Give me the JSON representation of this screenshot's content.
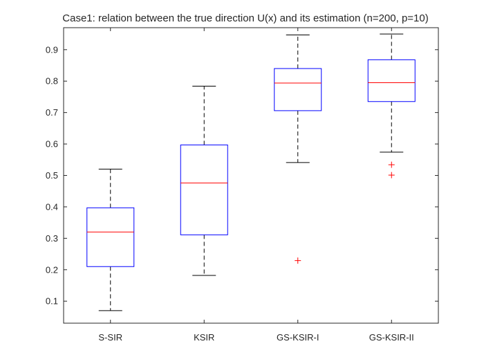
{
  "chart_data": {
    "type": "boxplot",
    "title": "Case1: relation between the true direction U(x) and its estimation (n=200, p=10)",
    "xlabel": "",
    "ylabel": "",
    "ylim": [
      0.03,
      0.97
    ],
    "yticks": [
      0.1,
      0.2,
      0.3,
      0.4,
      0.5,
      0.6,
      0.7,
      0.8,
      0.9
    ],
    "ytick_labels": [
      "0.1",
      "0.2",
      "0.3",
      "0.4",
      "0.5",
      "0.6",
      "0.7",
      "0.8",
      "0.9"
    ],
    "categories": [
      "S-SIR",
      "KSIR",
      "GS-KSIR-I",
      "GS-KSIR-II"
    ],
    "boxes": [
      {
        "name": "S-SIR",
        "whisker_low": 0.07,
        "q1": 0.21,
        "median": 0.32,
        "q3": 0.397,
        "whisker_high": 0.52,
        "outliers": []
      },
      {
        "name": "KSIR",
        "whisker_low": 0.182,
        "q1": 0.311,
        "median": 0.476,
        "q3": 0.597,
        "whisker_high": 0.784,
        "outliers": []
      },
      {
        "name": "GS-KSIR-I",
        "whisker_low": 0.541,
        "q1": 0.706,
        "median": 0.794,
        "q3": 0.84,
        "whisker_high": 0.947,
        "outliers": [
          0.229
        ]
      },
      {
        "name": "GS-KSIR-II",
        "whisker_low": 0.574,
        "q1": 0.735,
        "median": 0.795,
        "q3": 0.868,
        "whisker_high": 0.95,
        "outliers": [
          0.534,
          0.501
        ]
      }
    ],
    "colors": {
      "box": "#0000ff",
      "median": "#ff0000",
      "whisker": "#000000",
      "outlier": "#ff0000",
      "axis": "#262626"
    }
  }
}
